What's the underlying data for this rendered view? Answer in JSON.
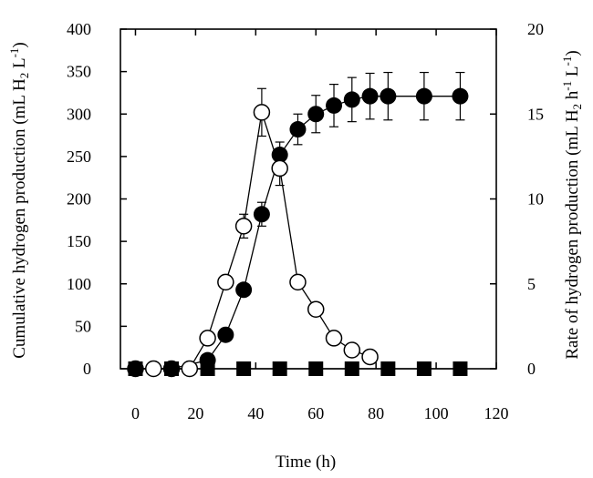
{
  "chart_data": {
    "type": "scatter",
    "xlabel": "Time (h)",
    "ylabel": "Cumulative hydrogen production (mL H₂ L⁻¹)",
    "y2label": "Rate of hydrogen production (mL H₂ h⁻¹ L⁻¹)",
    "xlim": [
      -5,
      120
    ],
    "ylim": [
      0,
      400
    ],
    "y2lim": [
      0,
      20
    ],
    "x_ticks": [
      "0",
      "20",
      "40",
      "60",
      "80",
      "100",
      "120"
    ],
    "y_ticks": [
      "0",
      "50",
      "100",
      "150",
      "200",
      "250",
      "300",
      "350",
      "400"
    ],
    "y2_ticks": [
      "0",
      "5",
      "10",
      "15",
      "20"
    ],
    "grid": false,
    "legend": "none",
    "series": [
      {
        "axis": "left",
        "marker": "filled-circle",
        "connected": true,
        "color": "#000000",
        "x": [
          0,
          12,
          24,
          30,
          36,
          42,
          48,
          54,
          60,
          66,
          72,
          78,
          84,
          96,
          108
        ],
        "y": [
          0,
          0,
          10,
          40,
          93,
          182,
          252,
          282,
          300,
          310,
          317,
          321,
          321,
          321,
          321
        ],
        "err": [
          0,
          0,
          0,
          0,
          0,
          14,
          15,
          18,
          22,
          25,
          26,
          27,
          28,
          28,
          28
        ]
      },
      {
        "axis": "right",
        "marker": "open-circle",
        "connected": true,
        "color": "#000000",
        "x": [
          0,
          6,
          12,
          18,
          24,
          30,
          36,
          42,
          48,
          54,
          60,
          66,
          72,
          78
        ],
        "y": [
          0,
          0,
          0,
          0,
          1.8,
          5.1,
          8.4,
          15.1,
          11.8,
          5.1,
          3.5,
          1.8,
          1.1,
          0.7
        ],
        "err": [
          0,
          0,
          0,
          0,
          0,
          0.3,
          0.7,
          1.4,
          1.0,
          0.3,
          0,
          0,
          0,
          0
        ]
      },
      {
        "axis": "left",
        "marker": "filled-square",
        "connected": true,
        "color": "#000000",
        "x": [
          0,
          12,
          24,
          36,
          48,
          60,
          72,
          84,
          96,
          108
        ],
        "y": [
          0,
          0,
          0,
          0,
          0,
          0,
          0,
          0,
          0,
          0
        ]
      }
    ]
  }
}
